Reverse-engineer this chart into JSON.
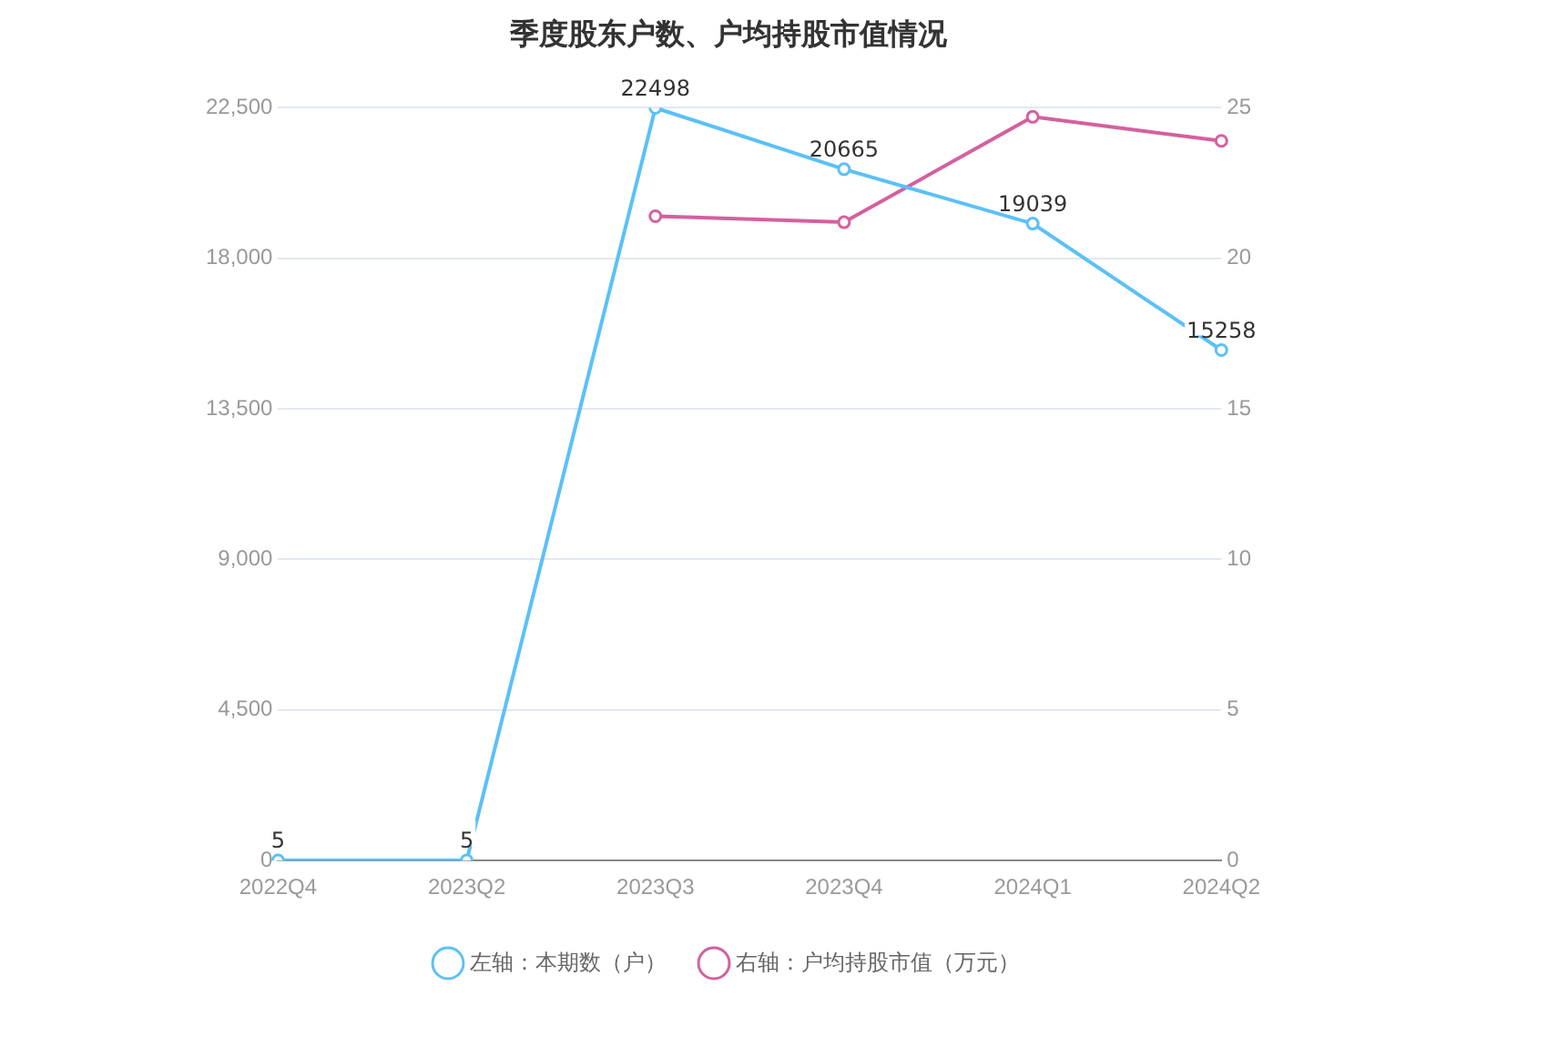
{
  "chart_data": {
    "type": "line",
    "title": "季度股东户数、户均持股市值情况",
    "categories": [
      "2022Q4",
      "2023Q2",
      "2023Q3",
      "2023Q4",
      "2024Q1",
      "2024Q2"
    ],
    "series": [
      {
        "name": "左轴：本期数（户）",
        "color": "#5bc0f8",
        "values": [
          5,
          5,
          22498,
          20665,
          19039,
          15258
        ],
        "value_labels": [
          "5",
          "5",
          "22498",
          "20665",
          "19039",
          "15258"
        ]
      },
      {
        "name": "右轴：户均持股市值（万元）",
        "color": "#d4609f",
        "axis": "y2",
        "values": [
          null,
          null,
          21.4,
          21.2,
          24.7,
          23.9
        ]
      }
    ],
    "ylim": [
      0,
      22500
    ],
    "yticks": [
      0,
      {
        "value": 4500,
        "label": "4,500"
      },
      {
        "value": 9000,
        "label": "9,000"
      },
      {
        "value": 13500,
        "label": "13,500"
      },
      {
        "value": 18000,
        "label": "18,000"
      },
      {
        "value": 22500,
        "label": "22,500"
      }
    ],
    "y2lim": [
      0,
      25
    ],
    "y2ticks": [
      0,
      5,
      10,
      15,
      20,
      25
    ],
    "grid": "y",
    "legend": "bottom",
    "marker": "circle",
    "line_style": "solid"
  }
}
